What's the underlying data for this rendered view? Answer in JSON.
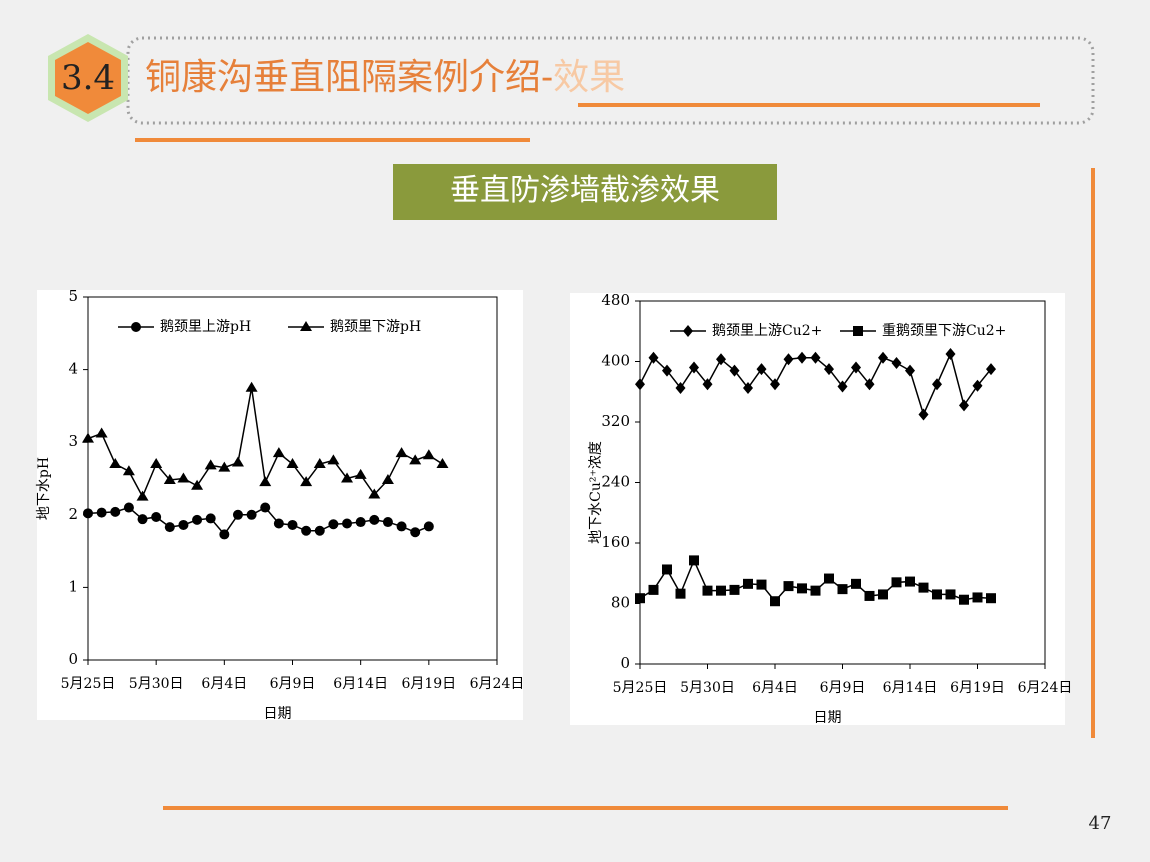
{
  "header": {
    "section": "3.4",
    "title": "铜康沟垂直阻隔案例介绍-",
    "title_suffix": "效果"
  },
  "banner": "垂直防渗墙截渗效果",
  "page_number": "47",
  "chart_data": [
    {
      "type": "line",
      "x_label": "日期",
      "y_label": "地下水pH",
      "x": [
        "5月25日",
        "5月26日",
        "5月27日",
        "5月28日",
        "5月29日",
        "5月30日",
        "5月31日",
        "6月1日",
        "6月2日",
        "6月3日",
        "6月4日",
        "6月5日",
        "6月6日",
        "6月7日",
        "6月8日",
        "6月9日",
        "6月10日",
        "6月11日",
        "6月12日",
        "6月13日",
        "6月14日",
        "6月15日",
        "6月16日",
        "6月17日",
        "6月18日",
        "6月19日",
        "6月20日"
      ],
      "series": [
        {
          "name": "鹅颈里上游pH",
          "color": "#000000",
          "marker": "circle",
          "values": [
            2.02,
            2.03,
            2.04,
            2.1,
            1.94,
            1.97,
            1.83,
            1.86,
            1.93,
            1.95,
            1.73,
            2.0,
            2.0,
            2.1,
            1.88,
            1.86,
            1.78,
            1.78,
            1.87,
            1.88,
            1.9,
            1.93,
            1.9,
            1.84,
            1.76,
            1.84,
            null
          ]
        },
        {
          "name": "鹅颈里下游pH",
          "color": "#000000",
          "marker": "triangle",
          "values": [
            3.05,
            3.12,
            2.7,
            2.6,
            2.25,
            2.7,
            2.48,
            2.5,
            2.4,
            2.68,
            2.65,
            2.72,
            3.75,
            2.45,
            2.85,
            2.7,
            2.45,
            2.7,
            2.75,
            2.5,
            2.55,
            2.28,
            2.48,
            2.85,
            2.75,
            2.82,
            2.7
          ]
        }
      ],
      "xlim": [
        "5月25日",
        "6月24日"
      ],
      "xticks": [
        "5月25日",
        "5月30日",
        "6月4日",
        "6月9日",
        "6月14日",
        "6月19日",
        "6月24日"
      ],
      "ylim": [
        0,
        5
      ],
      "yticks": [
        0,
        1,
        2,
        3,
        4,
        5
      ],
      "legend": "top-left"
    },
    {
      "type": "line",
      "x_label": "日期",
      "y_label": "地下水Cu²⁺浓度",
      "x": [
        "5月25日",
        "5月26日",
        "5月27日",
        "5月28日",
        "5月29日",
        "5月30日",
        "5月31日",
        "6月1日",
        "6月2日",
        "6月3日",
        "6月4日",
        "6月5日",
        "6月6日",
        "6月7日",
        "6月8日",
        "6月9日",
        "6月10日",
        "6月11日",
        "6月12日",
        "6月13日",
        "6月14日",
        "6月15日",
        "6月16日",
        "6月17日",
        "6月18日",
        "6月19日",
        "6月20日"
      ],
      "series": [
        {
          "name": "鹅颈里上游Cu2+",
          "color": "#000000",
          "marker": "diamond",
          "values": [
            370,
            405,
            388,
            365,
            392,
            370,
            403,
            388,
            365,
            390,
            370,
            403,
            405,
            405,
            390,
            367,
            392,
            370,
            405,
            398,
            388,
            330,
            370,
            410,
            342,
            368,
            390
          ]
        },
        {
          "name": "重鹅颈里下游Cu2+",
          "color": "#000000",
          "marker": "square",
          "values": [
            87,
            98,
            125,
            93,
            137,
            97,
            97,
            98,
            106,
            105,
            83,
            103,
            100,
            97,
            113,
            99,
            106,
            90,
            92,
            108,
            109,
            101,
            92,
            92,
            85,
            88,
            87
          ]
        }
      ],
      "xlim": [
        "5月25日",
        "6月24日"
      ],
      "xticks": [
        "5月25日",
        "5月30日",
        "6月4日",
        "6月9日",
        "6月14日",
        "6月19日",
        "6月24日"
      ],
      "ylim": [
        0,
        480
      ],
      "yticks": [
        0,
        80,
        160,
        240,
        320,
        400,
        480
      ],
      "legend": "top-left"
    }
  ]
}
